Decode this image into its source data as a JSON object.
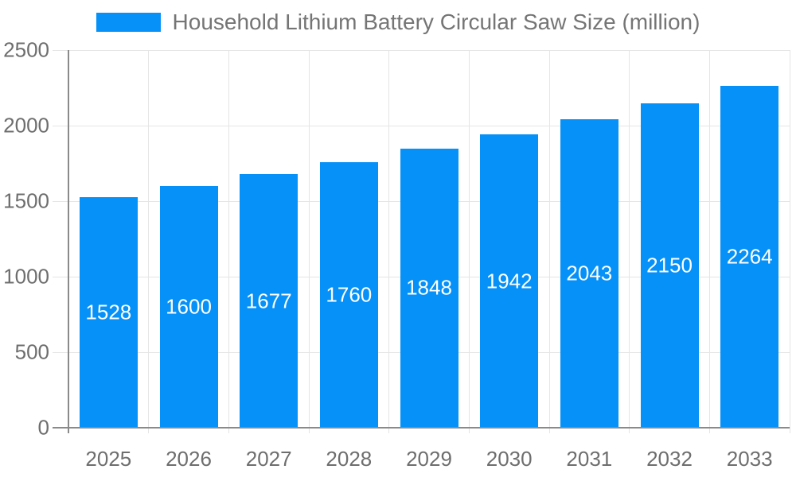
{
  "legend": {
    "label": "Household Lithium Battery Circular Saw Size (million)"
  },
  "chart_data": {
    "type": "bar",
    "title": "Household Lithium Battery Circular Saw Size (million)",
    "categories": [
      "2025",
      "2026",
      "2027",
      "2028",
      "2029",
      "2030",
      "2031",
      "2032",
      "2033"
    ],
    "values": [
      1528,
      1600,
      1677,
      1760,
      1848,
      1942,
      2043,
      2150,
      2264
    ],
    "xlabel": "",
    "ylabel": "",
    "ylim": [
      0,
      2500
    ],
    "yticks": [
      0,
      500,
      1000,
      1500,
      2000,
      2500
    ],
    "grid": true,
    "legend_position": "top-center",
    "bar_color": "#0591f8",
    "value_label_color": "#ffffff",
    "axis_color": "#8a8a8a",
    "grid_color": "#e5e5e5",
    "tick_label_color": "#6e6e6e",
    "title_color": "#757575"
  }
}
